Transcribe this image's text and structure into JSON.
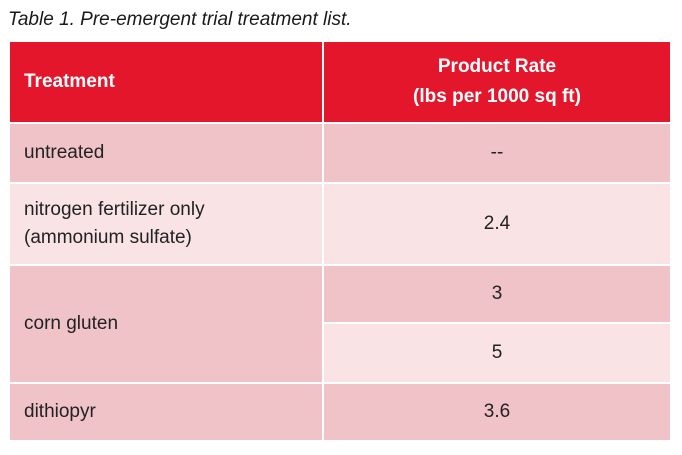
{
  "caption": "Table 1. Pre-emergent trial treatment list.",
  "table": {
    "headers": {
      "treatment": "Treatment",
      "rate_line1": "Product Rate",
      "rate_line2": "(lbs per 1000 sq ft)"
    },
    "rows": [
      {
        "treatment_line1": "untreated",
        "rate": "--"
      },
      {
        "treatment_line1": "nitrogen fertilizer only",
        "treatment_line2": "(ammonium sulfate)",
        "rate": "2.4"
      },
      {
        "treatment_line1": "corn gluten",
        "rates": [
          "3",
          "5"
        ]
      },
      {
        "treatment_line1": "dithiopyr",
        "rate": "3.6"
      }
    ]
  },
  "colors": {
    "header_bg": "#e3162c",
    "header_text": "#ffffff",
    "row_dark": "#f0c3c8",
    "row_light": "#f9e3e5"
  }
}
